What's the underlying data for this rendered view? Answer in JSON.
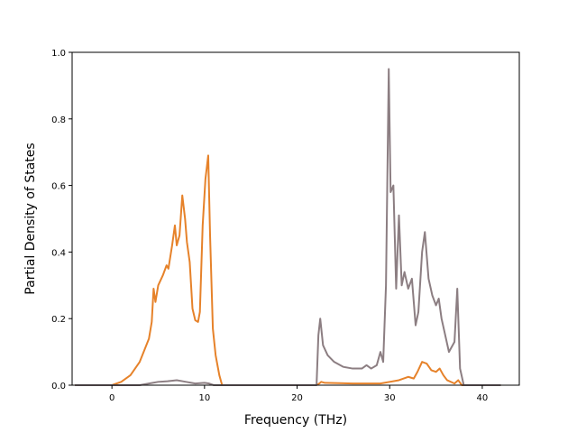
{
  "chart_data": {
    "type": "line",
    "title": "",
    "xlabel": "Frequency (THz)",
    "ylabel": "Partial Density of States",
    "xlim": [
      -4.3,
      44.0
    ],
    "ylim": [
      0.0,
      1.0
    ],
    "xticks": [
      0,
      10,
      20,
      30,
      40
    ],
    "yticks": [
      0.0,
      0.2,
      0.4,
      0.6,
      0.8,
      1.0
    ],
    "xtick_labels": [
      "0",
      "10",
      "20",
      "30",
      "40"
    ],
    "ytick_labels": [
      "0.0",
      "0.2",
      "0.4",
      "0.6",
      "0.8",
      "1.0"
    ],
    "grid": false,
    "legend": "none",
    "series": [
      {
        "color": "#e6822a",
        "points": [
          [
            -4.0,
            0.0
          ],
          [
            0.0,
            0.0
          ],
          [
            1.0,
            0.01
          ],
          [
            2.0,
            0.03
          ],
          [
            3.0,
            0.07
          ],
          [
            4.0,
            0.14
          ],
          [
            4.3,
            0.19
          ],
          [
            4.5,
            0.29
          ],
          [
            4.7,
            0.25
          ],
          [
            5.0,
            0.3
          ],
          [
            5.5,
            0.33
          ],
          [
            5.9,
            0.36
          ],
          [
            6.1,
            0.35
          ],
          [
            6.5,
            0.42
          ],
          [
            6.8,
            0.48
          ],
          [
            7.0,
            0.42
          ],
          [
            7.3,
            0.45
          ],
          [
            7.6,
            0.57
          ],
          [
            7.9,
            0.5
          ],
          [
            8.1,
            0.43
          ],
          [
            8.4,
            0.37
          ],
          [
            8.7,
            0.23
          ],
          [
            9.0,
            0.195
          ],
          [
            9.3,
            0.19
          ],
          [
            9.5,
            0.22
          ],
          [
            9.8,
            0.48
          ],
          [
            10.1,
            0.62
          ],
          [
            10.4,
            0.69
          ],
          [
            10.6,
            0.45
          ],
          [
            10.9,
            0.17
          ],
          [
            11.2,
            0.09
          ],
          [
            11.6,
            0.03
          ],
          [
            11.9,
            0.0
          ],
          [
            22.0,
            0.0
          ],
          [
            22.4,
            0.005
          ],
          [
            22.6,
            0.01
          ],
          [
            23.0,
            0.007
          ],
          [
            26.0,
            0.005
          ],
          [
            29.0,
            0.005
          ],
          [
            30.0,
            0.01
          ],
          [
            31.0,
            0.015
          ],
          [
            32.0,
            0.025
          ],
          [
            32.6,
            0.02
          ],
          [
            33.0,
            0.04
          ],
          [
            33.5,
            0.07
          ],
          [
            34.0,
            0.065
          ],
          [
            34.5,
            0.045
          ],
          [
            35.0,
            0.04
          ],
          [
            35.4,
            0.05
          ],
          [
            35.8,
            0.03
          ],
          [
            36.2,
            0.015
          ],
          [
            37.0,
            0.005
          ],
          [
            37.4,
            0.015
          ],
          [
            37.8,
            0.0
          ],
          [
            42.0,
            0.0
          ]
        ]
      },
      {
        "color": "#8c7e82",
        "points": [
          [
            -4.0,
            0.0
          ],
          [
            3.0,
            0.0
          ],
          [
            4.0,
            0.005
          ],
          [
            5.0,
            0.01
          ],
          [
            6.0,
            0.012
          ],
          [
            7.0,
            0.015
          ],
          [
            7.6,
            0.012
          ],
          [
            8.0,
            0.01
          ],
          [
            9.0,
            0.005
          ],
          [
            10.0,
            0.007
          ],
          [
            10.5,
            0.005
          ],
          [
            11.0,
            0.0
          ],
          [
            22.1,
            0.0
          ],
          [
            22.3,
            0.15
          ],
          [
            22.5,
            0.2
          ],
          [
            22.8,
            0.12
          ],
          [
            23.3,
            0.09
          ],
          [
            24.0,
            0.07
          ],
          [
            25.0,
            0.055
          ],
          [
            26.0,
            0.05
          ],
          [
            27.0,
            0.05
          ],
          [
            27.5,
            0.06
          ],
          [
            28.0,
            0.05
          ],
          [
            28.6,
            0.06
          ],
          [
            29.0,
            0.1
          ],
          [
            29.3,
            0.07
          ],
          [
            29.6,
            0.3
          ],
          [
            29.9,
            0.95
          ],
          [
            30.1,
            0.58
          ],
          [
            30.4,
            0.6
          ],
          [
            30.7,
            0.29
          ],
          [
            31.0,
            0.51
          ],
          [
            31.3,
            0.3
          ],
          [
            31.6,
            0.34
          ],
          [
            32.0,
            0.29
          ],
          [
            32.4,
            0.32
          ],
          [
            32.8,
            0.18
          ],
          [
            33.1,
            0.22
          ],
          [
            33.5,
            0.4
          ],
          [
            33.8,
            0.46
          ],
          [
            34.2,
            0.32
          ],
          [
            34.6,
            0.27
          ],
          [
            35.0,
            0.24
          ],
          [
            35.3,
            0.26
          ],
          [
            35.6,
            0.2
          ],
          [
            36.0,
            0.15
          ],
          [
            36.4,
            0.1
          ],
          [
            37.0,
            0.13
          ],
          [
            37.3,
            0.29
          ],
          [
            37.6,
            0.05
          ],
          [
            38.0,
            0.0
          ],
          [
            42.0,
            0.0
          ]
        ]
      }
    ]
  }
}
